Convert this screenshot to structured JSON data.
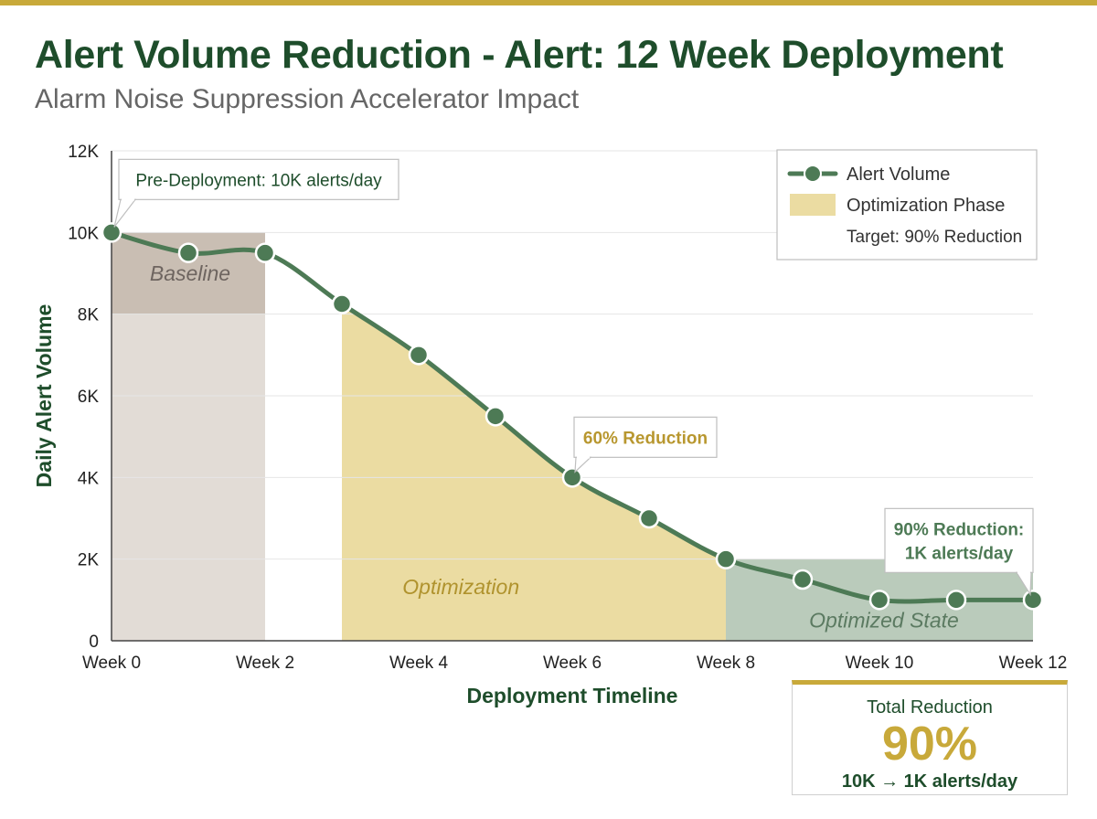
{
  "header": {
    "title": "Alert Volume Reduction - Alert: 12 Week Deployment",
    "subtitle": "Alarm Noise Suppression Accelerator Impact"
  },
  "chart_data": {
    "type": "line",
    "title": "Alert Volume Reduction - Alert: 12 Week Deployment",
    "subtitle": "Alarm Noise Suppression Accelerator Impact",
    "xlabel": "Deployment Timeline",
    "ylabel": "Daily Alert Volume",
    "xlim": [
      0,
      12
    ],
    "ylim": [
      0,
      12000
    ],
    "x_ticks": [
      {
        "value": 0,
        "label": "Week 0"
      },
      {
        "value": 2,
        "label": "Week 2"
      },
      {
        "value": 4,
        "label": "Week 4"
      },
      {
        "value": 6,
        "label": "Week 6"
      },
      {
        "value": 8,
        "label": "Week 8"
      },
      {
        "value": 10,
        "label": "Week 10"
      },
      {
        "value": 12,
        "label": "Week 12"
      }
    ],
    "y_ticks": [
      {
        "value": 0,
        "label": "0"
      },
      {
        "value": 2000,
        "label": "2K"
      },
      {
        "value": 4000,
        "label": "4K"
      },
      {
        "value": 6000,
        "label": "6K"
      },
      {
        "value": 8000,
        "label": "8K"
      },
      {
        "value": 10000,
        "label": "10K"
      },
      {
        "value": 12000,
        "label": "12K"
      }
    ],
    "grid": true,
    "series": [
      {
        "name": "Alert Volume",
        "color": "#4d7a55",
        "x": [
          0,
          1,
          2,
          3,
          4,
          5,
          6,
          7,
          8,
          9,
          10,
          11,
          12
        ],
        "y": [
          10000,
          9500,
          9500,
          8250,
          7000,
          5500,
          4000,
          3000,
          2000,
          1500,
          1000,
          1000,
          1000
        ]
      }
    ],
    "regions": [
      {
        "label": "Baseline",
        "x_start": 0,
        "x_end": 2,
        "y_max": 10000,
        "split_at": 8000,
        "color_upper": "#c9beb3",
        "color_lower": "#e2dcd6",
        "label_color": "#6e6560"
      },
      {
        "label": "Optimization",
        "x_start": 3,
        "x_end": 8,
        "follows_line": true,
        "color": "#ebdca2",
        "label_color": "#b0932e"
      },
      {
        "label": "Optimized State",
        "x_start": 8,
        "x_end": 12,
        "y_max": 2000,
        "color": "#bacbbb",
        "label_color": "#5b7a61"
      }
    ],
    "annotations": [
      {
        "text_lines": [
          "Pre-Deployment: 10K alerts/day"
        ],
        "x": 0,
        "y": 10000,
        "color": "#1e4d2b"
      },
      {
        "text_lines": [
          "60% Reduction"
        ],
        "x": 6,
        "y": 4000,
        "color": "#b8972f"
      },
      {
        "text_lines": [
          "90% Reduction:",
          "1K alerts/day"
        ],
        "x": 12,
        "y": 1000,
        "color": "#4d7a55"
      }
    ],
    "legend": {
      "placement": "top-right",
      "entries": [
        {
          "label": "Alert Volume",
          "kind": "line-marker",
          "color": "#4d7a55"
        },
        {
          "label": "Optimization Phase",
          "kind": "swatch",
          "color": "#ebdca2"
        },
        {
          "label": "Target: 90% Reduction",
          "kind": "text",
          "color": "#1e4d2b"
        }
      ]
    }
  },
  "summary": {
    "label": "Total Reduction",
    "value": "90%",
    "detail": "10K → 1K alerts/day"
  },
  "colors": {
    "brand_green": "#1e4d2b",
    "line_green": "#4d7a55",
    "gold": "#c8a93a"
  }
}
